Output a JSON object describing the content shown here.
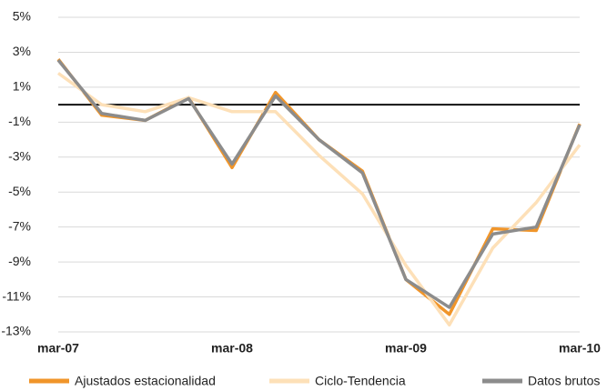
{
  "chart_data": {
    "type": "line",
    "categories": [
      "mar-07",
      null,
      null,
      null,
      "mar-08",
      null,
      null,
      null,
      "mar-09",
      null,
      null,
      null,
      "mar-10"
    ],
    "series": [
      {
        "name": "Ajustados estacionalidad",
        "color": "#f0952a",
        "values": [
          2.6,
          -0.6,
          -0.9,
          0.4,
          -3.6,
          0.7,
          -2.0,
          -3.8,
          -10.0,
          -12.0,
          -7.1,
          -7.2,
          -1.1
        ]
      },
      {
        "name": "Ciclo-Tendencia",
        "color": "#fde0b8",
        "values": [
          1.8,
          0.0,
          -0.4,
          0.4,
          -0.4,
          -0.4,
          -2.9,
          -5.1,
          -9.2,
          -12.6,
          -8.2,
          -5.6,
          -2.3
        ]
      },
      {
        "name": "Datos brutos",
        "color": "#8c8c8c",
        "values": [
          2.55,
          -0.5,
          -0.9,
          0.35,
          -3.4,
          0.5,
          -2.0,
          -3.9,
          -10.0,
          -11.6,
          -7.4,
          -7.0,
          -1.15
        ]
      }
    ],
    "ylim": [
      -13,
      5
    ],
    "yticks": [
      {
        "value": 5,
        "label": "5%"
      },
      {
        "value": 3,
        "label": "3%"
      },
      {
        "value": 1,
        "label": "1%"
      },
      {
        "value": -1,
        "label": "-1%"
      },
      {
        "value": -3,
        "label": "-3%"
      },
      {
        "value": -5,
        "label": "-5%"
      },
      {
        "value": -7,
        "label": "-7%"
      },
      {
        "value": -9,
        "label": "-9%"
      },
      {
        "value": -11,
        "label": "-11%"
      },
      {
        "value": -13,
        "label": "-13%"
      }
    ],
    "grid": true,
    "reference_line": 0,
    "legend": "bottom"
  }
}
